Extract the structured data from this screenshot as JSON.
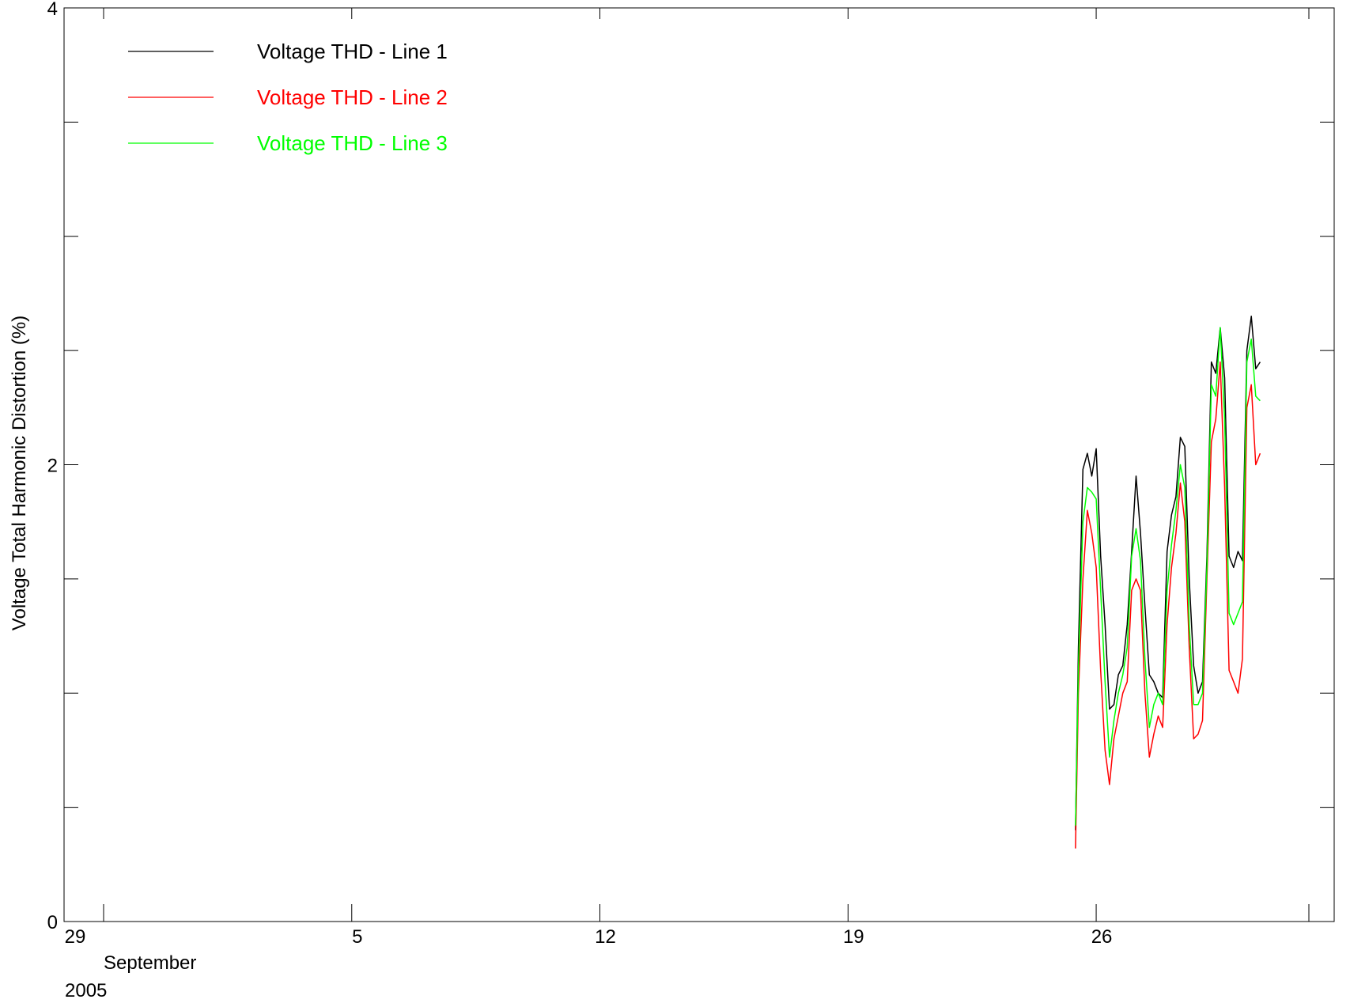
{
  "chart_data": {
    "type": "line",
    "title": "",
    "ylabel": "Voltage Total Harmonic Distortion (%)",
    "xlabel": "",
    "ylim": [
      0,
      4
    ],
    "y_ticks": [
      0,
      2,
      4
    ],
    "x_axis": {
      "start": "2005-08-29",
      "end": "2005-10-02",
      "tick_labels": [
        {
          "date": "2005-08-29",
          "label": "29"
        },
        {
          "date": "2005-09-05",
          "label": "5"
        },
        {
          "date": "2005-09-12",
          "label": "12"
        },
        {
          "date": "2005-09-19",
          "label": "19"
        },
        {
          "date": "2005-09-26",
          "label": "26"
        }
      ],
      "month_label": "September",
      "year_label": "2005"
    },
    "grid": false,
    "legend_position": "top-left",
    "series": [
      {
        "name": "Voltage THD - Line 1",
        "color": "#000000",
        "x": [
          "2005-09-25 10:00",
          "2005-09-25 12:00",
          "2005-09-25 15:00",
          "2005-09-25 18:00",
          "2005-09-25 21:00",
          "2005-09-26 00:00",
          "2005-09-26 03:00",
          "2005-09-26 06:00",
          "2005-09-26 09:00",
          "2005-09-26 12:00",
          "2005-09-26 15:00",
          "2005-09-26 18:00",
          "2005-09-26 21:00",
          "2005-09-27 00:00",
          "2005-09-27 03:00",
          "2005-09-27 06:00",
          "2005-09-27 09:00",
          "2005-09-27 12:00",
          "2005-09-27 15:00",
          "2005-09-27 18:00",
          "2005-09-27 21:00",
          "2005-09-28 00:00",
          "2005-09-28 03:00",
          "2005-09-28 06:00",
          "2005-09-28 09:00",
          "2005-09-28 12:00",
          "2005-09-28 15:00",
          "2005-09-28 18:00",
          "2005-09-28 21:00",
          "2005-09-29 00:00",
          "2005-09-29 03:00",
          "2005-09-29 06:00",
          "2005-09-29 09:00",
          "2005-09-29 12:00",
          "2005-09-29 15:00",
          "2005-09-29 18:00",
          "2005-09-29 21:00",
          "2005-09-30 00:00",
          "2005-09-30 03:00",
          "2005-09-30 06:00",
          "2005-09-30 09:00",
          "2005-09-30 12:00",
          "2005-09-30 15:00"
        ],
        "y": [
          0.4,
          1.2,
          1.98,
          2.05,
          1.95,
          2.07,
          1.6,
          1.3,
          0.93,
          0.95,
          1.08,
          1.12,
          1.3,
          1.62,
          1.95,
          1.7,
          1.38,
          1.08,
          1.05,
          1.0,
          0.98,
          1.62,
          1.78,
          1.86,
          2.12,
          2.08,
          1.5,
          1.12,
          1.0,
          1.05,
          1.6,
          2.45,
          2.4,
          2.6,
          2.38,
          1.6,
          1.55,
          1.62,
          1.58,
          2.5,
          2.65,
          2.42,
          2.45
        ]
      },
      {
        "name": "Voltage THD - Line 2",
        "color": "#ff0000",
        "x": [
          "2005-09-25 10:00",
          "2005-09-25 12:00",
          "2005-09-25 15:00",
          "2005-09-25 18:00",
          "2005-09-25 21:00",
          "2005-09-26 00:00",
          "2005-09-26 03:00",
          "2005-09-26 06:00",
          "2005-09-26 09:00",
          "2005-09-26 12:00",
          "2005-09-26 15:00",
          "2005-09-26 18:00",
          "2005-09-26 21:00",
          "2005-09-27 00:00",
          "2005-09-27 03:00",
          "2005-09-27 06:00",
          "2005-09-27 09:00",
          "2005-09-27 12:00",
          "2005-09-27 15:00",
          "2005-09-27 18:00",
          "2005-09-27 21:00",
          "2005-09-28 00:00",
          "2005-09-28 03:00",
          "2005-09-28 06:00",
          "2005-09-28 09:00",
          "2005-09-28 12:00",
          "2005-09-28 15:00",
          "2005-09-28 18:00",
          "2005-09-28 21:00",
          "2005-09-29 00:00",
          "2005-09-29 03:00",
          "2005-09-29 06:00",
          "2005-09-29 09:00",
          "2005-09-29 12:00",
          "2005-09-29 15:00",
          "2005-09-29 18:00",
          "2005-09-29 21:00",
          "2005-09-30 00:00",
          "2005-09-30 03:00",
          "2005-09-30 06:00",
          "2005-09-30 09:00",
          "2005-09-30 12:00",
          "2005-09-30 15:00"
        ],
        "y": [
          0.32,
          1.0,
          1.5,
          1.8,
          1.7,
          1.55,
          1.1,
          0.75,
          0.6,
          0.8,
          0.9,
          1.0,
          1.05,
          1.45,
          1.5,
          1.45,
          1.0,
          0.72,
          0.82,
          0.9,
          0.85,
          1.3,
          1.55,
          1.7,
          1.92,
          1.75,
          1.2,
          0.8,
          0.82,
          0.88,
          1.5,
          2.1,
          2.2,
          2.45,
          1.9,
          1.1,
          1.05,
          1.0,
          1.15,
          2.25,
          2.35,
          2.0,
          2.05
        ]
      },
      {
        "name": "Voltage THD - Line 3",
        "color": "#00ff00",
        "x": [
          "2005-09-25 10:00",
          "2005-09-25 12:00",
          "2005-09-25 15:00",
          "2005-09-25 18:00",
          "2005-09-25 21:00",
          "2005-09-26 00:00",
          "2005-09-26 03:00",
          "2005-09-26 06:00",
          "2005-09-26 09:00",
          "2005-09-26 12:00",
          "2005-09-26 15:00",
          "2005-09-26 18:00",
          "2005-09-26 21:00",
          "2005-09-27 00:00",
          "2005-09-27 03:00",
          "2005-09-27 06:00",
          "2005-09-27 09:00",
          "2005-09-27 12:00",
          "2005-09-27 15:00",
          "2005-09-27 18:00",
          "2005-09-27 21:00",
          "2005-09-28 00:00",
          "2005-09-28 03:00",
          "2005-09-28 06:00",
          "2005-09-28 09:00",
          "2005-09-28 12:00",
          "2005-09-28 15:00",
          "2005-09-28 18:00",
          "2005-09-28 21:00",
          "2005-09-29 00:00",
          "2005-09-29 03:00",
          "2005-09-29 06:00",
          "2005-09-29 09:00",
          "2005-09-29 12:00",
          "2005-09-29 15:00",
          "2005-09-29 18:00",
          "2005-09-29 21:00",
          "2005-09-30 00:00",
          "2005-09-30 03:00",
          "2005-09-30 06:00",
          "2005-09-30 09:00",
          "2005-09-30 12:00",
          "2005-09-30 15:00"
        ],
        "y": [
          0.42,
          1.1,
          1.75,
          1.9,
          1.88,
          1.85,
          1.45,
          1.05,
          0.72,
          0.88,
          1.0,
          1.08,
          1.2,
          1.6,
          1.72,
          1.58,
          1.15,
          0.85,
          0.95,
          1.0,
          0.95,
          1.45,
          1.65,
          1.8,
          2.0,
          1.9,
          1.3,
          0.95,
          0.95,
          1.0,
          1.55,
          2.35,
          2.3,
          2.6,
          2.2,
          1.35,
          1.3,
          1.35,
          1.4,
          2.45,
          2.55,
          2.3,
          2.28
        ]
      }
    ]
  }
}
